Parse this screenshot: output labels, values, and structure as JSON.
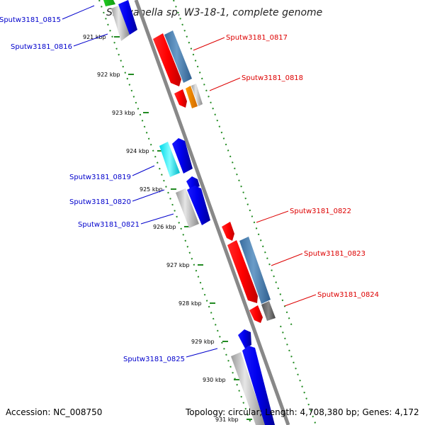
{
  "title": "Shewanella sp. W3-18-1, complete genome",
  "accession": "Accession: NC_008750",
  "topology": "Topology: circular; Length: 4,708,380 bp; Genes: 4,172",
  "colors": {
    "backbone": "#888888",
    "tick": "#228b22",
    "forward_label": "#dd0000",
    "reverse_label": "#0000cc"
  },
  "kbp_ticks": [
    "921 kbp",
    "922 kbp",
    "923 kbp",
    "924 kbp",
    "925 kbp",
    "926 kbp",
    "927 kbp",
    "928 kbp",
    "929 kbp",
    "930 kbp",
    "931 kbp"
  ],
  "forward_genes": [
    {
      "label": "Sputw3181_0817",
      "color": "#dd0000"
    },
    {
      "label": "Sputw3181_0818",
      "color": "#dd0000"
    },
    {
      "label": "Sputw3181_0822",
      "color": "#dd0000"
    },
    {
      "label": "Sputw3181_0823",
      "color": "#dd0000"
    },
    {
      "label": "Sputw3181_0824",
      "color": "#dd0000"
    }
  ],
  "reverse_genes": [
    {
      "label": "Sputw3181_0815",
      "color": "#0000cc"
    },
    {
      "label": "Sputw3181_0816",
      "color": "#0000cc"
    },
    {
      "label": "Sputw3181_0819",
      "color": "#0000cc"
    },
    {
      "label": "Sputw3181_0820",
      "color": "#0000cc"
    },
    {
      "label": "Sputw3181_0821",
      "color": "#0000cc"
    },
    {
      "label": "Sputw3181_0825",
      "color": "#0000cc"
    }
  ]
}
